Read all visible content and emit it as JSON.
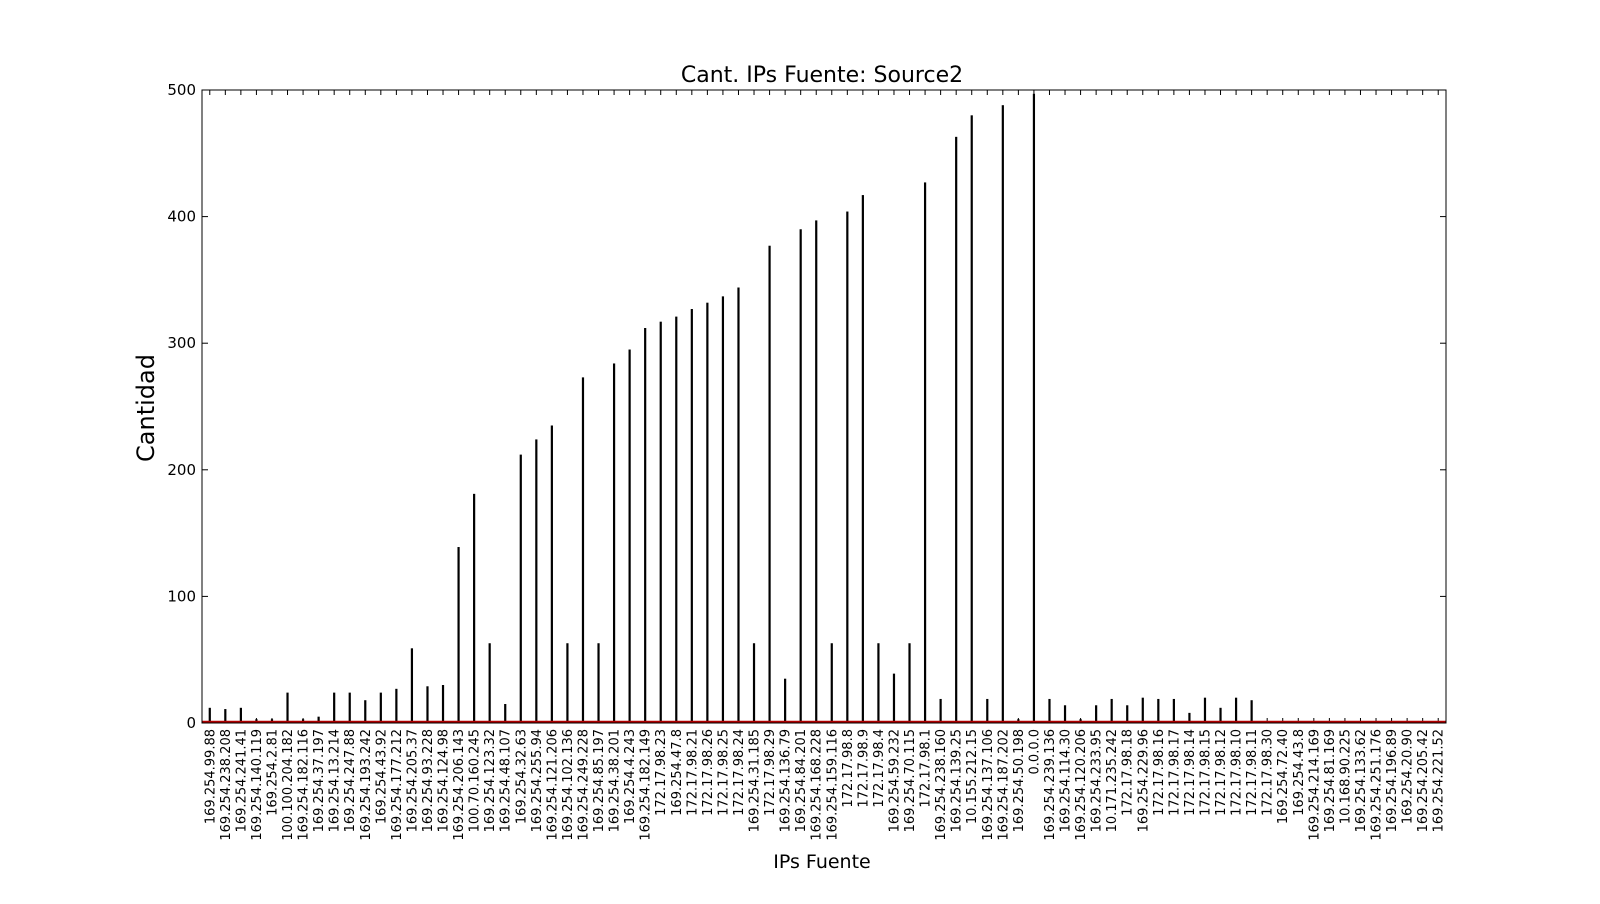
{
  "chart_data": {
    "type": "bar",
    "title": "Cant. IPs Fuente: Source2",
    "xlabel": "IPs Fuente",
    "ylabel": "Cantidad",
    "ylim": [
      0,
      500
    ],
    "yticks": [
      0,
      100,
      200,
      300,
      400,
      500
    ],
    "bar_color": "#000000",
    "baseline_color": "#b00000",
    "grid": false,
    "categories": [
      "169.254.99.88",
      "169.254.238.208",
      "169.254.241.41",
      "169.254.140.119",
      "169.254.2.81",
      "100.100.204.182",
      "169.254.182.116",
      "169.254.37.197",
      "169.254.13.214",
      "169.254.247.88",
      "169.254.193.242",
      "169.254.43.92",
      "169.254.177.212",
      "169.254.205.37",
      "169.254.93.228",
      "169.254.124.98",
      "169.254.206.143",
      "100.70.160.245",
      "169.254.123.32",
      "169.254.48.107",
      "169.254.32.63",
      "169.254.255.94",
      "169.254.121.206",
      "169.254.102.136",
      "169.254.249.228",
      "169.254.85.197",
      "169.254.38.201",
      "169.254.4.243",
      "169.254.182.149",
      "172.17.98.23",
      "169.254.47.8",
      "172.17.98.21",
      "172.17.98.26",
      "172.17.98.25",
      "172.17.98.24",
      "169.254.31.185",
      "172.17.98.29",
      "169.254.136.79",
      "169.254.84.201",
      "169.254.168.228",
      "169.254.159.116",
      "172.17.98.8",
      "172.17.98.9",
      "172.17.98.4",
      "169.254.59.232",
      "169.254.70.115",
      "172.17.98.1",
      "169.254.238.160",
      "169.254.139.25",
      "10.155.212.15",
      "169.254.137.106",
      "169.254.187.202",
      "169.254.50.198",
      "0.0.0.0",
      "169.254.239.136",
      "169.254.114.30",
      "169.254.120.206",
      "169.254.233.95",
      "10.171.235.242",
      "172.17.98.18",
      "169.254.229.96",
      "172.17.98.16",
      "172.17.98.17",
      "172.17.98.14",
      "172.17.98.15",
      "172.17.98.12",
      "172.17.98.10",
      "172.17.98.11",
      "172.17.98.30",
      "169.254.72.40",
      "169.254.43.8",
      "169.254.214.169",
      "169.254.81.169",
      "10.168.90.225",
      "169.254.133.62",
      "169.254.251.176",
      "169.254.196.89",
      "169.254.20.90",
      "169.254.205.42",
      "169.254.221.52"
    ],
    "values": [
      12,
      11,
      12,
      3,
      3,
      24,
      3,
      5,
      24,
      24,
      18,
      24,
      27,
      59,
      29,
      30,
      139,
      181,
      63,
      15,
      212,
      224,
      235,
      63,
      273,
      63,
      284,
      295,
      312,
      317,
      321,
      327,
      332,
      337,
      344,
      63,
      377,
      35,
      390,
      397,
      63,
      404,
      417,
      63,
      39,
      63,
      427,
      19,
      463,
      480,
      19,
      488,
      3,
      497,
      19,
      14,
      3,
      14,
      19,
      14,
      20,
      19,
      19,
      8,
      20,
      12,
      20,
      18,
      1,
      1,
      1,
      1,
      1,
      1,
      1,
      1,
      1,
      1,
      1,
      1
    ]
  }
}
